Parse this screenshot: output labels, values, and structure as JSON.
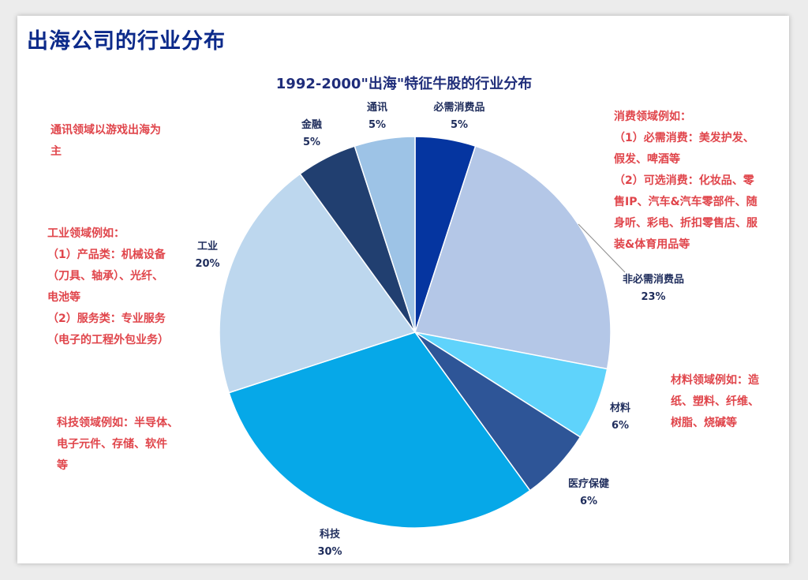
{
  "page_title": "出海公司的行业分布",
  "chart_data": {
    "type": "pie",
    "title": "1992-2000\"出海\"特征牛股的行业分布",
    "slices": [
      {
        "label": "必需消费品",
        "value": 5,
        "pct": "5%",
        "color": "#0535a0"
      },
      {
        "label": "非必需消费品",
        "value": 23,
        "pct": "23%",
        "color": "#b4c7e7"
      },
      {
        "label": "材料",
        "value": 6,
        "pct": "6%",
        "color": "#5fd3fb"
      },
      {
        "label": "医疗保健",
        "value": 6,
        "pct": "6%",
        "color": "#2e5597"
      },
      {
        "label": "科技",
        "value": 30,
        "pct": "30%",
        "color": "#06a8e8"
      },
      {
        "label": "工业",
        "value": 20,
        "pct": "20%",
        "color": "#bdd7ee"
      },
      {
        "label": "金融",
        "value": 5,
        "pct": "5%",
        "color": "#213f70"
      },
      {
        "label": "通讯",
        "value": 5,
        "pct": "5%",
        "color": "#9dc3e6"
      }
    ]
  },
  "notes": {
    "telecom": [
      "通讯领域以游戏出海为",
      "主"
    ],
    "industry": [
      "工业领域例如：",
      "（1）产品类：机械设备",
      "（刀具、轴承）、光纤、",
      "电池等",
      "（2）服务类：专业服务",
      "（电子的工程外包业务）"
    ],
    "tech": [
      "科技领域例如：半导体、",
      "电子元件、存储、软件",
      "等"
    ],
    "consumer": [
      "消费领域例如：",
      "（1）必需消费：美发护发、",
      "假发、啤酒等",
      "（2）可选消费：化妆品、零",
      "售IP、汽车&汽车零部件、随",
      "身听、彩电、折扣零售店、服",
      "装&体育用品等"
    ],
    "materials": [
      "材料领域例如：造",
      "纸、塑料、纤维、",
      "树脂、烧碱等"
    ]
  }
}
